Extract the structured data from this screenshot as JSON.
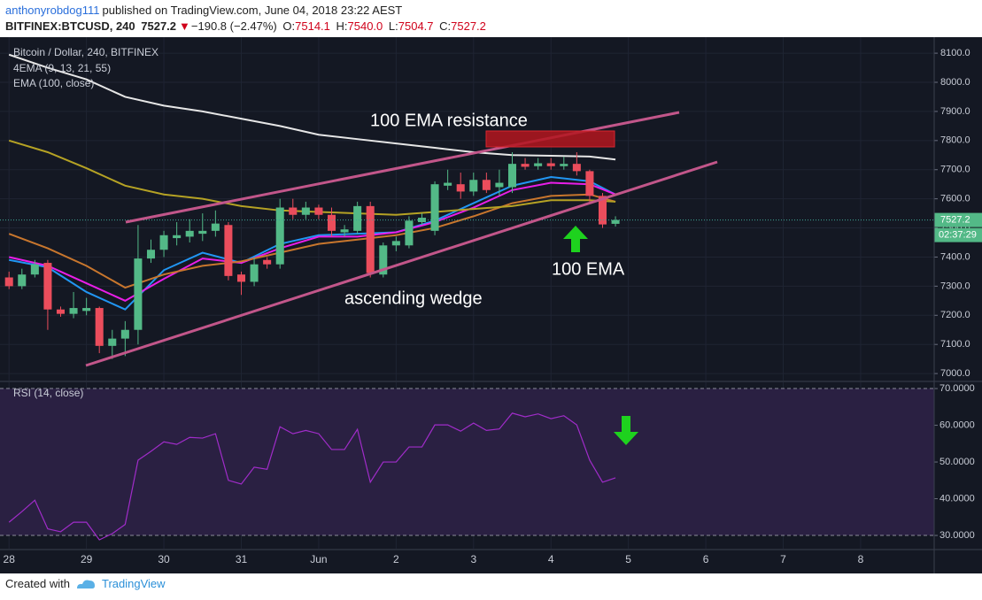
{
  "header": {
    "author": "anthonyrobdog111",
    "published": "published on TradingView.com, June 04, 2018 23:22 AEST",
    "symbol": "BITFINEX:BTCUSD, 240",
    "last": "7527.2",
    "change_arrow": "▼",
    "change": "−190.8 (−2.47%)",
    "ohlc": [
      {
        "label": "O:",
        "value": "7514.1"
      },
      {
        "label": "H:",
        "value": "7540.0"
      },
      {
        "label": "L:",
        "value": "7504.7"
      },
      {
        "label": "C:",
        "value": "7527.2"
      }
    ]
  },
  "chart_data": [
    {
      "type": "candlestick",
      "title": "Bitcoin / Dollar, 240, BITFINEX",
      "open": [
        7330,
        7300,
        7340,
        7380,
        7220,
        7205,
        7215,
        7225,
        7095,
        7120,
        7150,
        7395,
        7425,
        7465,
        7470,
        7480,
        7490,
        7510,
        7340,
        7315,
        7390,
        7375,
        7570,
        7545,
        7570,
        7545,
        7485,
        7490,
        7575,
        7340,
        7440,
        7440,
        7520,
        7490,
        7645,
        7650,
        7625,
        7665,
        7640,
        7640,
        7720,
        7712,
        7722,
        7712,
        7720,
        7695,
        7610,
        7514.1
      ],
      "high": [
        7350,
        7360,
        7390,
        7390,
        7230,
        7280,
        7260,
        7230,
        7150,
        7180,
        7510,
        7460,
        7490,
        7520,
        7530,
        7550,
        7560,
        7520,
        7350,
        7400,
        7400,
        7600,
        7600,
        7590,
        7580,
        7570,
        7510,
        7590,
        7590,
        7450,
        7470,
        7540,
        7550,
        7660,
        7700,
        7690,
        7690,
        7690,
        7700,
        7760,
        7740,
        7740,
        7740,
        7745,
        7760,
        7700,
        7620,
        7540
      ],
      "low": [
        7290,
        7290,
        7330,
        7150,
        7195,
        7190,
        7200,
        7070,
        7050,
        7060,
        7100,
        7380,
        7400,
        7440,
        7450,
        7455,
        7470,
        7320,
        7270,
        7300,
        7360,
        7360,
        7530,
        7530,
        7530,
        7470,
        7470,
        7480,
        7330,
        7330,
        7420,
        7430,
        7510,
        7475,
        7630,
        7600,
        7610,
        7620,
        7610,
        7620,
        7700,
        7700,
        7700,
        7700,
        7680,
        7590,
        7500,
        7504.7
      ],
      "close": [
        7300,
        7340,
        7375,
        7220,
        7205,
        7225,
        7225,
        7095,
        7120,
        7150,
        7395,
        7425,
        7475,
        7475,
        7490,
        7490,
        7515,
        7335,
        7315,
        7375,
        7375,
        7570,
        7545,
        7570,
        7545,
        7490,
        7495,
        7575,
        7345,
        7440,
        7455,
        7525,
        7535,
        7650,
        7655,
        7625,
        7665,
        7630,
        7655,
        7720,
        7710,
        7722,
        7712,
        7720,
        7695,
        7610,
        7512,
        7527.2
      ],
      "up_color": "#53b987",
      "down_color": "#eb4d5c",
      "indicators": [
        {
          "label": "4EMA (9, 13, 21, 55)",
          "x": [
            0,
            3,
            6,
            9,
            12,
            15,
            18,
            21,
            24,
            27,
            30,
            33,
            36,
            39,
            42,
            45,
            47
          ],
          "lines": [
            {
              "color": "#2196f3",
              "values": [
                7390,
                7365,
                7280,
                7220,
                7355,
                7415,
                7380,
                7445,
                7475,
                7480,
                7485,
                7525,
                7585,
                7645,
                7675,
                7660,
                7615
              ]
            },
            {
              "color": "#e91ee8",
              "values": [
                7400,
                7370,
                7310,
                7250,
                7325,
                7395,
                7380,
                7430,
                7470,
                7470,
                7485,
                7520,
                7570,
                7630,
                7655,
                7650,
                7615
              ]
            },
            {
              "color": "#c8762d",
              "values": [
                7480,
                7430,
                7370,
                7295,
                7340,
                7370,
                7385,
                7415,
                7445,
                7460,
                7475,
                7500,
                7540,
                7585,
                7610,
                7615,
                7590
              ]
            },
            {
              "color": "#b5a224",
              "values": [
                7800,
                7760,
                7705,
                7645,
                7615,
                7600,
                7575,
                7560,
                7555,
                7550,
                7545,
                7555,
                7565,
                7575,
                7595,
                7595,
                7590
              ]
            }
          ]
        },
        {
          "label": "EMA (100, close)",
          "x": [
            0,
            3,
            6,
            9,
            12,
            15,
            18,
            21,
            24,
            27,
            30,
            33,
            36,
            39,
            42,
            45,
            47
          ],
          "lines": [
            {
              "color": "#e6e6e6",
              "values": [
                8095,
                8050,
                8010,
                7950,
                7920,
                7900,
                7875,
                7850,
                7820,
                7805,
                7790,
                7775,
                7760,
                7750,
                7748,
                7745,
                7735
              ]
            }
          ]
        }
      ],
      "countdown": "02:37:29",
      "xlim": [
        -0.7,
        71.7
      ],
      "ylim": [
        6976,
        8155
      ],
      "yticks": [
        {
          "value": 7000,
          "label": "7000.0"
        },
        {
          "value": 7100,
          "label": "7100.0"
        },
        {
          "value": 7200,
          "label": "7200.0"
        },
        {
          "value": 7300,
          "label": "7300.0"
        },
        {
          "value": 7400,
          "label": "7400.0"
        },
        {
          "value": 7500,
          "label": "7500.0"
        },
        {
          "value": 7600,
          "label": "7600.0"
        },
        {
          "value": 7700,
          "label": "7700.0"
        },
        {
          "value": 7800,
          "label": "7800.0"
        },
        {
          "value": 7900,
          "label": "7900.0"
        },
        {
          "value": 8000,
          "label": "8000.0"
        },
        {
          "value": 8100,
          "label": "8100.0"
        }
      ],
      "grid": true
    },
    {
      "type": "line",
      "title": "RSI (14, close)",
      "color": "#a02cc9",
      "values": [
        33.6,
        36.5,
        39.6,
        31.8,
        31,
        33.6,
        33.6,
        28.8,
        30.5,
        33,
        50.5,
        52.9,
        55.5,
        54.8,
        56.7,
        56.5,
        57.7,
        45,
        44,
        48.6,
        48,
        59.6,
        57.7,
        58.6,
        57.7,
        53.4,
        53.4,
        58.9,
        44.5,
        50,
        50,
        54.1,
        54.1,
        60.1,
        60.1,
        58.4,
        60.6,
        58.6,
        59,
        63.3,
        62.3,
        63.1,
        61.8,
        62.6,
        60.1,
        50.5,
        44.5,
        45.7
      ],
      "band": [
        30,
        70
      ],
      "band_color": "#2a2042",
      "xlim": [
        -0.7,
        71.7
      ],
      "ylim": [
        26.4,
        71.7
      ],
      "yticks": [
        {
          "value": 30,
          "label": "30.0000"
        },
        {
          "value": 40,
          "label": "40.0000"
        },
        {
          "value": 50,
          "label": "50.0000"
        },
        {
          "value": 60,
          "label": "60.0000"
        },
        {
          "value": 70,
          "label": "70.0000"
        }
      ],
      "xticks": [
        {
          "value": 0,
          "label": "28"
        },
        {
          "value": 6,
          "label": "29"
        },
        {
          "value": 12,
          "label": "30"
        },
        {
          "value": 18,
          "label": "31"
        },
        {
          "value": 24,
          "label": "Jun"
        },
        {
          "value": 30,
          "label": "2"
        },
        {
          "value": 36,
          "label": "3"
        },
        {
          "value": 42,
          "label": "4"
        },
        {
          "value": 48,
          "label": "5"
        },
        {
          "value": 54,
          "label": "6"
        },
        {
          "value": 60,
          "label": "7"
        },
        {
          "value": 66,
          "label": "8"
        }
      ],
      "grid": true
    }
  ],
  "annotations": {
    "resistance": "100 EMA resistance",
    "wedge": "ascending wedge",
    "ema": "100 EMA"
  },
  "footer": {
    "created": "Created with",
    "brand": "TradingView"
  }
}
